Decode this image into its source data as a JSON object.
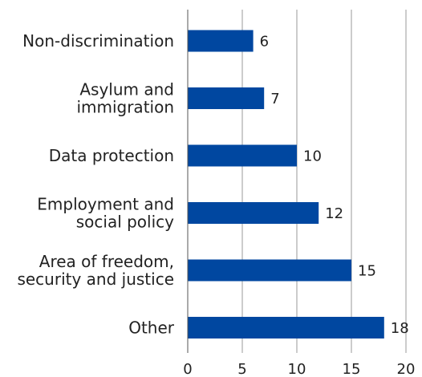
{
  "chart_data": {
    "type": "bar",
    "orientation": "horizontal",
    "categories": [
      [
        "Non-discrimination"
      ],
      [
        "Asylum and",
        "immigration"
      ],
      [
        "Data protection"
      ],
      [
        "Employment and",
        "social policy"
      ],
      [
        "Area of freedom,",
        "security and justice"
      ],
      [
        "Other"
      ]
    ],
    "values": [
      6,
      7,
      10,
      12,
      15,
      18
    ],
    "value_labels": [
      "6",
      "7",
      "10",
      "12",
      "15",
      "18"
    ],
    "xlim": [
      0,
      20
    ],
    "xticks": [
      0,
      5,
      10,
      15,
      20
    ],
    "xtick_labels": [
      "0",
      "5",
      "10",
      "15",
      "20"
    ],
    "grid": "vertical",
    "title": "",
    "xlabel": "",
    "ylabel": "",
    "bar_color": "#0047a0",
    "grid_color": "#999999"
  }
}
